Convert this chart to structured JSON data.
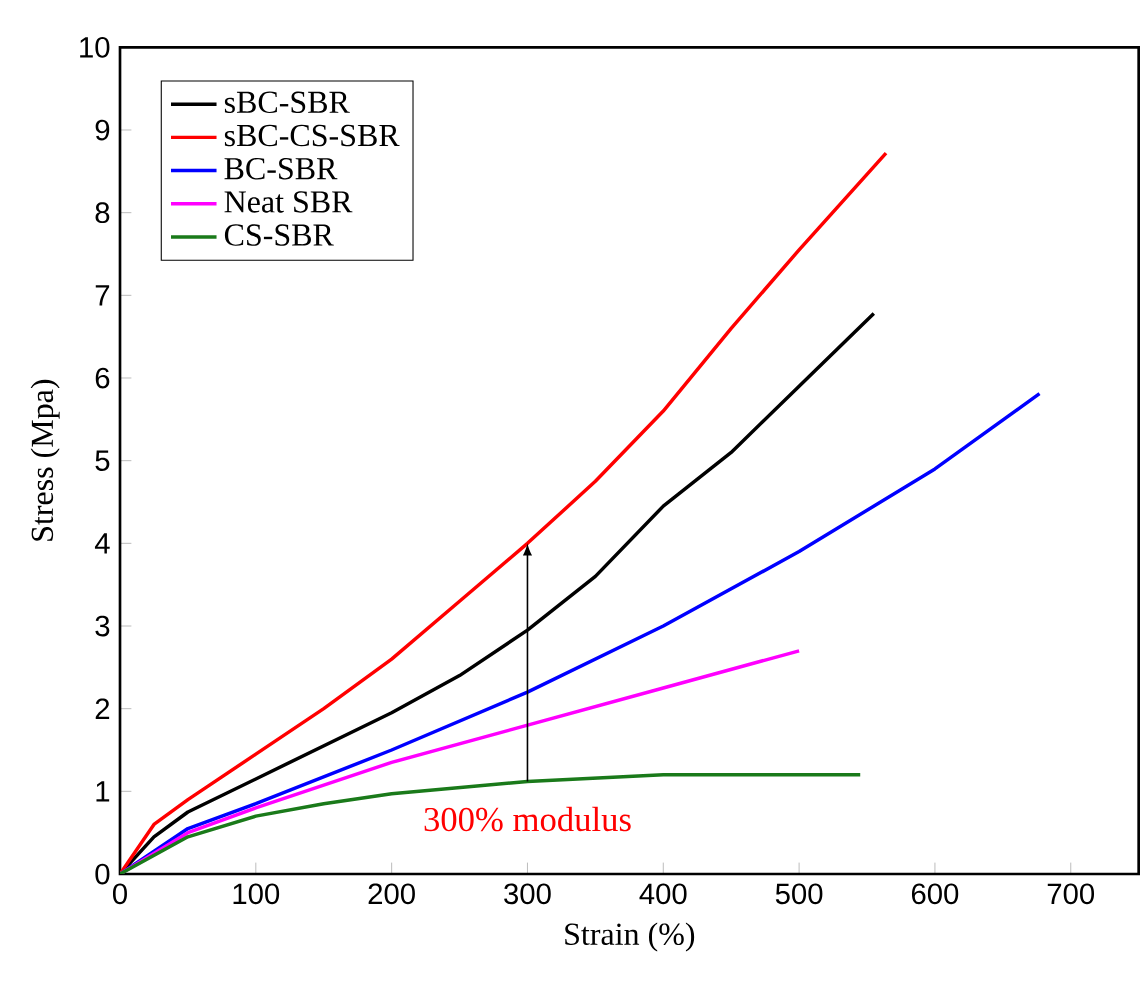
{
  "chart_data": {
    "type": "line",
    "xlabel": "Strain (%)",
    "ylabel": "Stress (Mpa)",
    "xlim": [
      0,
      750
    ],
    "ylim": [
      0,
      10
    ],
    "xticks": [
      0,
      100,
      200,
      300,
      400,
      500,
      600,
      700
    ],
    "yticks": [
      0,
      1,
      2,
      3,
      4,
      5,
      6,
      7,
      8,
      9,
      10
    ],
    "grid": false,
    "legend": "top left",
    "line_style": "solid",
    "marker": "none",
    "annotations": [
      {
        "text": "300% modulus",
        "x": 300,
        "y": 4.0
      }
    ],
    "series": [
      {
        "name": "sBC-SBR",
        "color": "#000000",
        "x": [
          0,
          25,
          50,
          100,
          150,
          200,
          250,
          300,
          350,
          400,
          450,
          500,
          555
        ],
        "values": [
          0,
          0.45,
          0.75,
          1.15,
          1.55,
          1.95,
          2.4,
          2.95,
          3.6,
          4.45,
          5.1,
          5.9,
          6.78
        ]
      },
      {
        "name": "sBC-CS-SBR",
        "color": "#ff0000",
        "x": [
          0,
          25,
          50,
          100,
          150,
          200,
          250,
          300,
          350,
          400,
          450,
          500,
          564
        ],
        "values": [
          0,
          0.6,
          0.9,
          1.45,
          2.0,
          2.6,
          3.3,
          4.0,
          4.75,
          5.6,
          6.6,
          7.55,
          8.72
        ]
      },
      {
        "name": "BC-SBR",
        "color": "#0000ff",
        "x": [
          0,
          50,
          100,
          200,
          300,
          400,
          500,
          600,
          677
        ],
        "values": [
          0,
          0.55,
          0.85,
          1.5,
          2.2,
          3.0,
          3.9,
          4.9,
          5.81
        ]
      },
      {
        "name": "Neat SBR",
        "color": "#ff00ff",
        "x": [
          0,
          50,
          100,
          200,
          300,
          400,
          500
        ],
        "values": [
          0,
          0.5,
          0.8,
          1.35,
          1.8,
          2.25,
          2.7
        ]
      },
      {
        "name": "CS-SBR",
        "color": "#1a7a1a",
        "x": [
          0,
          50,
          100,
          150,
          200,
          300,
          400,
          545
        ],
        "values": [
          0,
          0.45,
          0.7,
          0.85,
          0.97,
          1.12,
          1.2,
          1.2
        ]
      }
    ]
  }
}
